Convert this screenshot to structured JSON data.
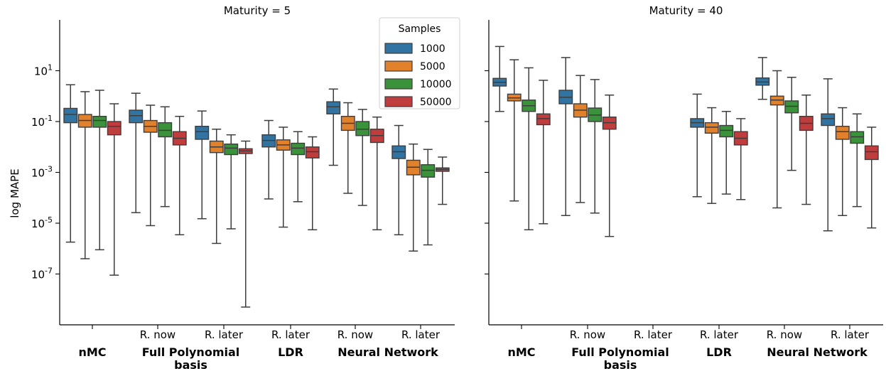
{
  "chart_data": {
    "type": "box",
    "y_scale": "log",
    "ylabel": "log MAPE",
    "yticks": [
      1e-07,
      1e-05,
      0.001,
      0.1,
      10
    ],
    "ytick_labels": [
      "10^-7",
      "10^-5",
      "10^-3",
      "10^-1",
      "10^1"
    ],
    "ylim": [
      1e-09,
      1000.0
    ],
    "legend": {
      "title": "Samples",
      "placement": "top-right",
      "entries": [
        {
          "label": "1000",
          "color": "#3274a1"
        },
        {
          "label": "5000",
          "color": "#e1812c"
        },
        {
          "label": "10000",
          "color": "#3a923a"
        },
        {
          "label": "50000",
          "color": "#c03d3e"
        }
      ]
    },
    "group_labels": [
      {
        "sub": "",
        "main": [
          "nMC"
        ]
      },
      {
        "sub": "R. now",
        "main": [
          "Full Polynomial",
          "basis"
        ]
      },
      {
        "sub": "R. later",
        "main": []
      },
      {
        "sub": "R. later",
        "main": [
          "LDR"
        ]
      },
      {
        "sub": "R. now",
        "main": [
          "Neural Network"
        ]
      },
      {
        "sub": "R. later",
        "main": []
      }
    ],
    "panels": [
      {
        "title": "Maturity = 5",
        "groups": [
          [
            {
              "samples": "1000",
              "min": 1.8e-06,
              "q1": 0.09,
              "median": 0.19,
              "q3": 0.33,
              "max": 2.8
            },
            {
              "samples": "5000",
              "min": 4e-07,
              "q1": 0.06,
              "median": 0.11,
              "q3": 0.19,
              "max": 1.5
            },
            {
              "samples": "10000",
              "min": 9e-07,
              "q1": 0.06,
              "median": 0.11,
              "q3": 0.16,
              "max": 1.7
            },
            {
              "samples": "50000",
              "min": 9e-08,
              "q1": 0.03,
              "median": 0.065,
              "q3": 0.1,
              "max": 0.5
            }
          ],
          [
            {
              "samples": "1000",
              "min": 2.6e-05,
              "q1": 0.09,
              "median": 0.17,
              "q3": 0.28,
              "max": 1.3
            },
            {
              "samples": "5000",
              "min": 8e-06,
              "q1": 0.038,
              "median": 0.065,
              "q3": 0.11,
              "max": 0.44
            },
            {
              "samples": "10000",
              "min": 4.5e-05,
              "q1": 0.025,
              "median": 0.045,
              "q3": 0.09,
              "max": 0.38
            },
            {
              "samples": "50000",
              "min": 3.5e-06,
              "q1": 0.012,
              "median": 0.022,
              "q3": 0.04,
              "max": 0.16
            }
          ],
          [
            {
              "samples": "1000",
              "min": 1.5e-05,
              "q1": 0.02,
              "median": 0.04,
              "q3": 0.065,
              "max": 0.26
            },
            {
              "samples": "5000",
              "min": 1.6e-06,
              "q1": 0.006,
              "median": 0.01,
              "q3": 0.017,
              "max": 0.05
            },
            {
              "samples": "10000",
              "min": 6e-06,
              "q1": 0.005,
              "median": 0.009,
              "q3": 0.013,
              "max": 0.03
            },
            {
              "samples": "50000",
              "min": 5e-09,
              "q1": 0.0055,
              "median": 0.007,
              "q3": 0.0085,
              "max": 0.017
            }
          ],
          [
            {
              "samples": "1000",
              "min": 9e-05,
              "q1": 0.01,
              "median": 0.018,
              "q3": 0.03,
              "max": 0.11
            },
            {
              "samples": "5000",
              "min": 7e-06,
              "q1": 0.0075,
              "median": 0.012,
              "q3": 0.019,
              "max": 0.06
            },
            {
              "samples": "10000",
              "min": 7e-05,
              "q1": 0.005,
              "median": 0.009,
              "q3": 0.014,
              "max": 0.04
            },
            {
              "samples": "50000",
              "min": 5.5e-06,
              "q1": 0.0037,
              "median": 0.0065,
              "q3": 0.01,
              "max": 0.025
            }
          ],
          [
            {
              "samples": "1000",
              "min": 0.0019,
              "q1": 0.2,
              "median": 0.38,
              "q3": 0.6,
              "max": 1.9
            },
            {
              "samples": "5000",
              "min": 0.00015,
              "q1": 0.045,
              "median": 0.085,
              "q3": 0.16,
              "max": 0.55
            },
            {
              "samples": "10000",
              "min": 5e-05,
              "q1": 0.028,
              "median": 0.05,
              "q3": 0.1,
              "max": 0.3
            },
            {
              "samples": "50000",
              "min": 5.5e-06,
              "q1": 0.015,
              "median": 0.028,
              "q3": 0.05,
              "max": 0.15
            }
          ],
          [
            {
              "samples": "1000",
              "min": 3.5e-06,
              "q1": 0.0035,
              "median": 0.0065,
              "q3": 0.011,
              "max": 0.07
            },
            {
              "samples": "5000",
              "min": 8e-07,
              "q1": 0.0008,
              "median": 0.0016,
              "q3": 0.003,
              "max": 0.013
            },
            {
              "samples": "10000",
              "min": 1.4e-06,
              "q1": 0.00065,
              "median": 0.0012,
              "q3": 0.002,
              "max": 0.008
            },
            {
              "samples": "50000",
              "min": 5.5e-05,
              "q1": 0.0011,
              "median": 0.0013,
              "q3": 0.0015,
              "max": 0.004
            }
          ]
        ]
      },
      {
        "title": "Maturity = 40",
        "groups": [
          [
            {
              "samples": "1000",
              "min": 0.25,
              "q1": 2.5,
              "median": 3.5,
              "q3": 5.0,
              "max": 90
            },
            {
              "samples": "5000",
              "min": 7.5e-05,
              "q1": 0.65,
              "median": 0.85,
              "q3": 1.2,
              "max": 27
            },
            {
              "samples": "10000",
              "min": 5.5e-06,
              "q1": 0.25,
              "median": 0.42,
              "q3": 0.7,
              "max": 13
            },
            {
              "samples": "50000",
              "min": 9.5e-06,
              "q1": 0.075,
              "median": 0.13,
              "q3": 0.2,
              "max": 4.2
            }
          ],
          [
            {
              "samples": "1000",
              "min": 2e-05,
              "q1": 0.5,
              "median": 0.9,
              "q3": 1.7,
              "max": 33
            },
            {
              "samples": "5000",
              "min": 6.5e-05,
              "q1": 0.15,
              "median": 0.28,
              "q3": 0.5,
              "max": 6.5
            },
            {
              "samples": "10000",
              "min": 2.5e-05,
              "q1": 0.1,
              "median": 0.18,
              "q3": 0.34,
              "max": 4.5
            },
            {
              "samples": "50000",
              "min": 3e-06,
              "q1": 0.05,
              "median": 0.09,
              "q3": 0.15,
              "max": 1.1
            }
          ],
          [],
          [
            {
              "samples": "1000",
              "min": 0.00011,
              "q1": 0.06,
              "median": 0.09,
              "q3": 0.13,
              "max": 1.2
            },
            {
              "samples": "5000",
              "min": 6e-05,
              "q1": 0.035,
              "median": 0.06,
              "q3": 0.09,
              "max": 0.35
            },
            {
              "samples": "10000",
              "min": 0.00014,
              "q1": 0.025,
              "median": 0.045,
              "q3": 0.07,
              "max": 0.25
            },
            {
              "samples": "50000",
              "min": 8.5e-05,
              "q1": 0.012,
              "median": 0.022,
              "q3": 0.04,
              "max": 0.13
            }
          ],
          [
            {
              "samples": "1000",
              "min": 0.75,
              "q1": 2.7,
              "median": 3.6,
              "q3": 5.2,
              "max": 33
            },
            {
              "samples": "5000",
              "min": 4e-05,
              "q1": 0.45,
              "median": 0.7,
              "q3": 1.0,
              "max": 10
            },
            {
              "samples": "10000",
              "min": 0.0012,
              "q1": 0.22,
              "median": 0.4,
              "q3": 0.65,
              "max": 5.5
            },
            {
              "samples": "50000",
              "min": 5.5e-05,
              "q1": 0.045,
              "median": 0.085,
              "q3": 0.16,
              "max": 1.1
            }
          ],
          [
            {
              "samples": "1000",
              "min": 5e-06,
              "q1": 0.07,
              "median": 0.13,
              "q3": 0.2,
              "max": 4.8
            },
            {
              "samples": "5000",
              "min": 2e-05,
              "q1": 0.02,
              "median": 0.04,
              "q3": 0.065,
              "max": 0.35
            },
            {
              "samples": "10000",
              "min": 4.5e-05,
              "q1": 0.014,
              "median": 0.025,
              "q3": 0.04,
              "max": 0.2
            },
            {
              "samples": "50000",
              "min": 6.5e-06,
              "q1": 0.0032,
              "median": 0.0065,
              "q3": 0.011,
              "max": 0.06
            }
          ]
        ]
      }
    ]
  }
}
